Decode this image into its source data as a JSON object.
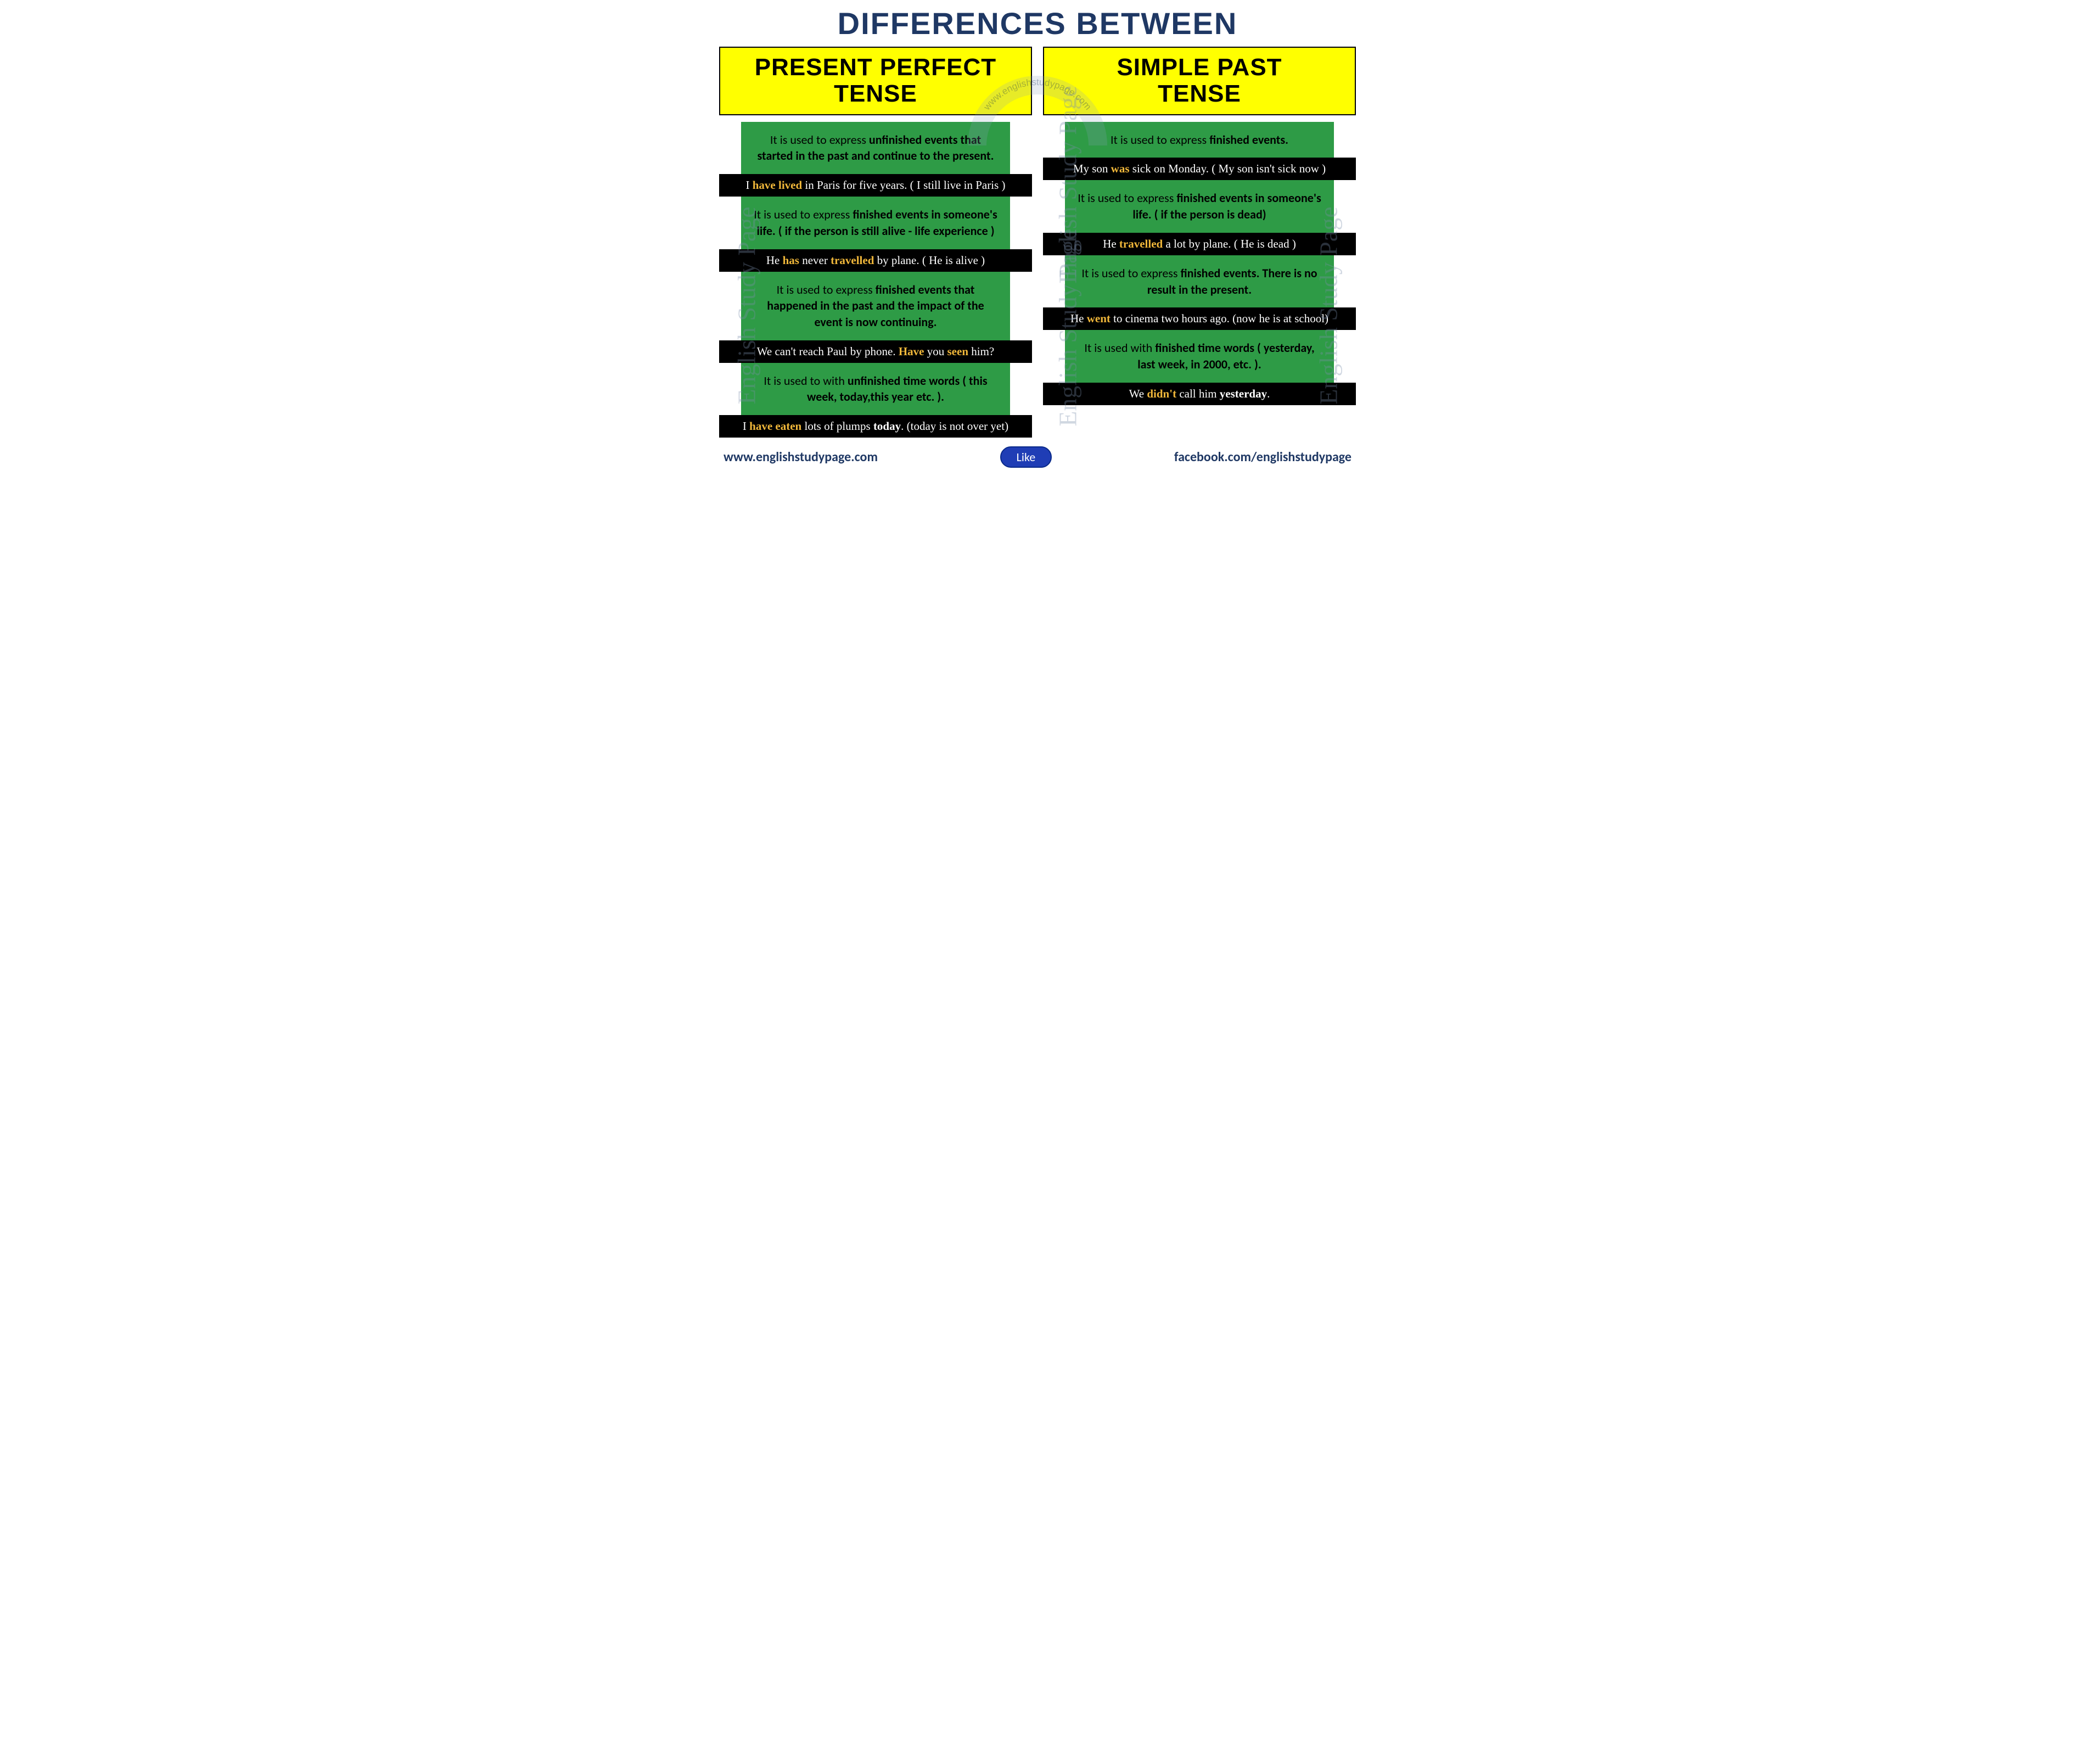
{
  "title": "DIFFERENCES BETWEEN",
  "colors": {
    "title": "#1f3864",
    "header_bg": "#ffff00",
    "header_border": "#000000",
    "rule_bg": "#2e9b46",
    "example_bg": "#000000",
    "highlight": "#f0b73a",
    "like_bg": "#1f3db5",
    "watermark": "rgba(120,140,170,0.35)"
  },
  "left": {
    "header_line1": "PRESENT PERFECT",
    "header_line2": "TENSE",
    "rules": [
      {
        "pre": "It is used to express ",
        "bold": "unfinished events that started in the past and continue to the present.",
        "post": ""
      },
      {
        "pre": "It is used to express ",
        "bold": "finished events in someone's life. ( if the person is still alive - life experience )",
        "post": ""
      },
      {
        "pre": "It is used to express ",
        "bold": "finished events that happened in the past and the impact of the event is now continuing.",
        "post": ""
      },
      {
        "pre": "It is used to with ",
        "bold": "unfinished time words ( this week, today,this year etc. ).",
        "post": ""
      }
    ],
    "examples": [
      {
        "segments": [
          {
            "t": "I "
          },
          {
            "t": "have lived",
            "hl": true
          },
          {
            "t": " in Paris for five years. ( I still live in Paris )"
          }
        ]
      },
      {
        "segments": [
          {
            "t": "He "
          },
          {
            "t": "has",
            "hl": true
          },
          {
            "t": " never "
          },
          {
            "t": "travelled",
            "hl": true
          },
          {
            "t": " by plane. ( He is alive )"
          }
        ]
      },
      {
        "segments": [
          {
            "t": "We can't reach Paul by phone. "
          },
          {
            "t": "Have",
            "hl": true
          },
          {
            "t": " you "
          },
          {
            "t": "seen",
            "hl": true
          },
          {
            "t": " him?"
          }
        ]
      },
      {
        "segments": [
          {
            "t": "I "
          },
          {
            "t": "have eaten",
            "hl": true
          },
          {
            "t": " lots of plumps "
          },
          {
            "t": "today",
            "wb": true
          },
          {
            "t": ".  (today is not over yet)"
          }
        ]
      }
    ]
  },
  "right": {
    "header_line1": "SIMPLE PAST",
    "header_line2": "TENSE",
    "rules": [
      {
        "pre": "It is used to express ",
        "bold": "finished events.",
        "post": ""
      },
      {
        "pre": "It is used to express ",
        "bold": "finished events in someone's life. ( if the person is dead)",
        "post": ""
      },
      {
        "pre": "It is used to express ",
        "bold": "finished events. There is no result in the present.",
        "post": ""
      },
      {
        "pre": "It is used  with ",
        "bold": "finished time words ( yesterday, last week, in 2000, etc. ).",
        "post": ""
      }
    ],
    "examples": [
      {
        "segments": [
          {
            "t": "My son "
          },
          {
            "t": "was",
            "hl": true
          },
          {
            "t": " sick on Monday. ( My son isn't sick now )"
          }
        ]
      },
      {
        "segments": [
          {
            "t": "He "
          },
          {
            "t": "travelled",
            "hl": true
          },
          {
            "t": " a lot by plane. ( He is dead )"
          }
        ]
      },
      {
        "segments": [
          {
            "t": "He "
          },
          {
            "t": "went",
            "hl": true
          },
          {
            "t": " to cinema two hours ago. (now he is at school)"
          }
        ]
      },
      {
        "segments": [
          {
            "t": "We "
          },
          {
            "t": "didn't",
            "hl": true
          },
          {
            "t": " call him "
          },
          {
            "t": "yesterday",
            "wb": true
          },
          {
            "t": "."
          }
        ]
      }
    ]
  },
  "footer": {
    "left_url": "www.englishstudypage.com",
    "like": "Like",
    "right_url": "facebook.com/englishstudypage"
  },
  "watermarks": {
    "vertical": "English Study Page",
    "arc": "www.englishstudypage.com"
  }
}
